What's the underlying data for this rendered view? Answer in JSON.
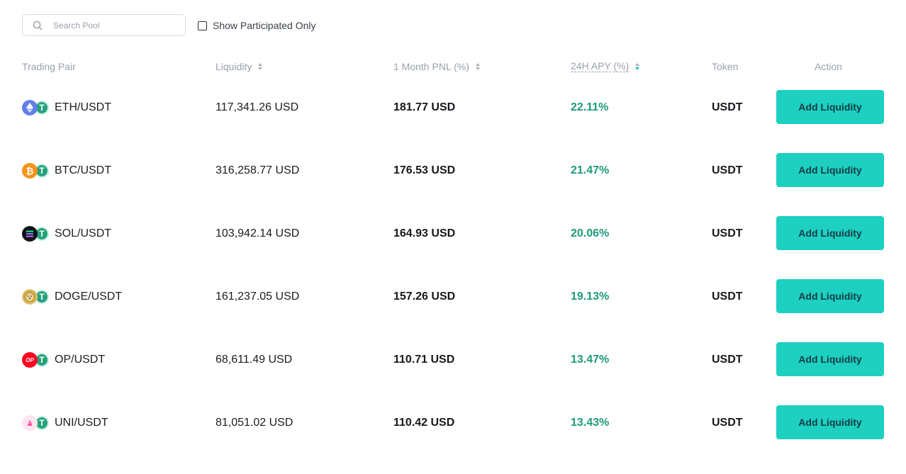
{
  "search": {
    "placeholder": "Search Pool",
    "value": ""
  },
  "filter": {
    "label": "Show Participated Only",
    "checked": false
  },
  "columns": {
    "pair": "Trading Pair",
    "liquidity": "Liquidity",
    "pnl": "1 Month PNL (%)",
    "apy": "24H APY (%)",
    "token": "Token",
    "action": "Action"
  },
  "colors": {
    "accent": "#1dd0c0",
    "apy_green": "#1d9a7a",
    "header_gray": "#9aa1ab",
    "usdt": "#26a17b"
  },
  "rows": [
    {
      "pair": "ETH/USDT",
      "icon": "eth-icon",
      "liquidity": "117,341.26 USD",
      "pnl": "181.77 USD",
      "apy": "22.11%",
      "token": "USDT",
      "action": "Add Liquidity"
    },
    {
      "pair": "BTC/USDT",
      "icon": "btc-icon",
      "liquidity": "316,258.77 USD",
      "pnl": "176.53 USD",
      "apy": "21.47%",
      "token": "USDT",
      "action": "Add Liquidity"
    },
    {
      "pair": "SOL/USDT",
      "icon": "sol-icon",
      "liquidity": "103,942.14 USD",
      "pnl": "164.93 USD",
      "apy": "20.06%",
      "token": "USDT",
      "action": "Add Liquidity"
    },
    {
      "pair": "DOGE/USDT",
      "icon": "doge-icon",
      "liquidity": "161,237.05 USD",
      "pnl": "157.26 USD",
      "apy": "19.13%",
      "token": "USDT",
      "action": "Add Liquidity"
    },
    {
      "pair": "OP/USDT",
      "icon": "op-icon",
      "icon_text": "OP",
      "liquidity": "68,611.49 USD",
      "pnl": "110.71 USD",
      "apy": "13.47%",
      "token": "USDT",
      "action": "Add Liquidity"
    },
    {
      "pair": "UNI/USDT",
      "icon": "uni-icon",
      "liquidity": "81,051.02 USD",
      "pnl": "110.42 USD",
      "apy": "13.43%",
      "token": "USDT",
      "action": "Add Liquidity"
    }
  ]
}
